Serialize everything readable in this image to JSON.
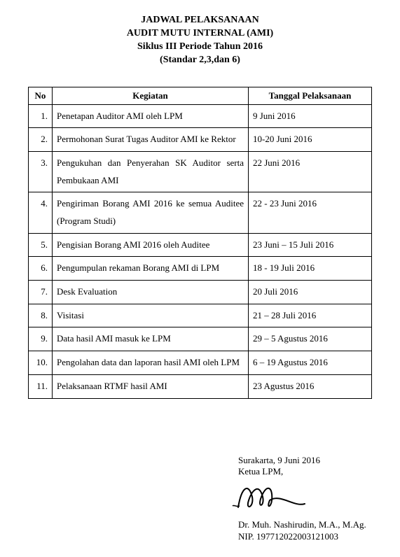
{
  "header": {
    "line1": "JADWAL PELAKSANAAN",
    "line2": "AUDIT MUTU INTERNAL (AMI)",
    "line3": "Siklus III Periode Tahun 2016",
    "line4": "(Standar 2,3,dan 6)"
  },
  "table": {
    "columns": {
      "no": "No",
      "kegiatan": "Kegiatan",
      "tanggal": "Tanggal Pelaksanaan"
    },
    "rows": [
      {
        "no": "1.",
        "kegiatan": "Penetapan Auditor AMI oleh LPM",
        "tanggal": "9 Juni 2016"
      },
      {
        "no": "2.",
        "kegiatan": "Permohonan Surat Tugas Auditor AMI ke Rektor",
        "tanggal": "10-20 Juni 2016"
      },
      {
        "no": "3.",
        "kegiatan": "Pengukuhan dan Penyerahan SK Auditor serta Pembukaan AMI",
        "tanggal": "22 Juni 2016"
      },
      {
        "no": "4.",
        "kegiatan": "Pengiriman Borang AMI 2016 ke semua Auditee (Program Studi)",
        "tanggal": "22 - 23 Juni 2016"
      },
      {
        "no": "5.",
        "kegiatan": "Pengisian Borang AMI 2016 oleh Auditee",
        "tanggal": "23 Juni – 15 Juli 2016"
      },
      {
        "no": "6.",
        "kegiatan": "Pengumpulan rekaman Borang AMI di LPM",
        "tanggal": "18 - 19 Juli 2016"
      },
      {
        "no": "7.",
        "kegiatan": "Desk Evaluation",
        "tanggal": "20 Juli 2016"
      },
      {
        "no": "8.",
        "kegiatan": "Visitasi",
        "tanggal": "21 – 28 Juli 2016"
      },
      {
        "no": "9.",
        "kegiatan": "Data hasil AMI masuk ke LPM",
        "tanggal": "29 – 5 Agustus 2016"
      },
      {
        "no": "10.",
        "kegiatan": "Pengolahan data dan laporan hasil AMI oleh LPM",
        "tanggal": "6 – 19 Agustus 2016"
      },
      {
        "no": "11.",
        "kegiatan": "Pelaksanaan RTMF hasil AMI",
        "tanggal": "23 Agustus 2016"
      }
    ]
  },
  "signature": {
    "place_date": "Surakarta, 9 Juni 2016",
    "title": "Ketua LPM,",
    "name": "Dr. Muh. Nashirudin, M.A., M.Ag.",
    "nip": "NIP. 197712022003121003"
  }
}
